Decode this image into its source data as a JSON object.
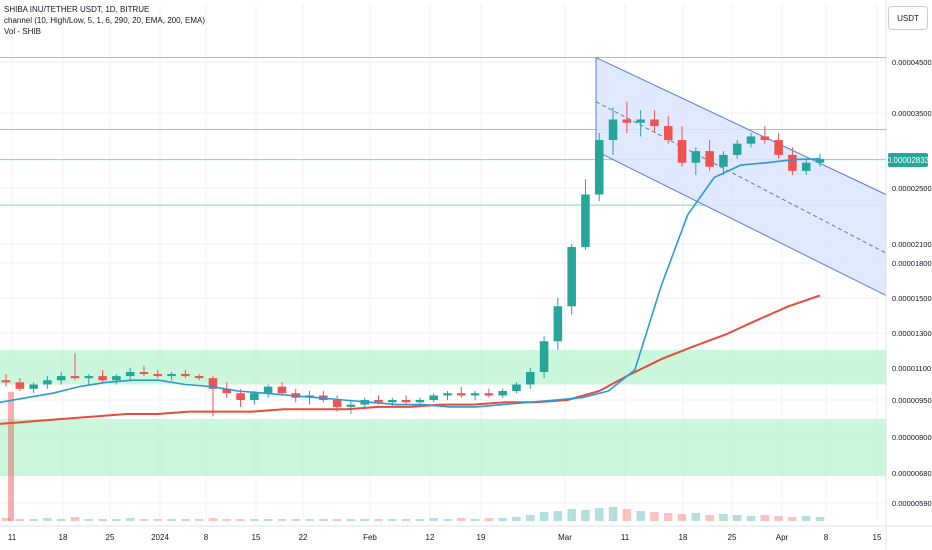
{
  "legend": {
    "title": "SHIBA INU/TETHER USDT, 1D, BITRUE",
    "indicator": "channel (10, High/Low, 5, 1, 6, 290, 20, EMA, 200, EMA)",
    "volume": "Vol - SHIB"
  },
  "currency_button": "USDT",
  "colors": {
    "up": "#26a69a",
    "down": "#ef5350",
    "channel_fill": "#dbe5fd",
    "channel_line": "#5b7bd5",
    "ema20": "#2a9bd8",
    "ema200": "#e74c3c",
    "zone": "#b9f4d0",
    "resistance": "#f3a2a2",
    "support": "#7ed8b8",
    "last_price_bg": "#26a69a"
  },
  "chart_data": {
    "type": "candlestick",
    "x_ticks": [
      "11",
      "18",
      "25",
      "2024",
      "8",
      "15",
      "22",
      "Feb",
      "12",
      "19",
      "Mar",
      "11",
      "18",
      "25",
      "Apr",
      "8",
      "15"
    ],
    "y_ticks": [
      "0.00004500",
      "0.00003500",
      "0.00002500",
      "0.00002100",
      "0.00001800",
      "0.00001500",
      "0.00001300",
      "0.00001100",
      "0.00000950",
      "0.00000800",
      "0.00000680",
      "0.00000590"
    ],
    "y_scale": "log",
    "last_price": "0.00002833",
    "horizontal_levels": [
      {
        "price": 4.6e-05,
        "kind": "resistance"
      },
      {
        "price": 3.25e-05,
        "kind": "resistance"
      },
      {
        "price": 2.84e-05,
        "kind": "support"
      },
      {
        "price": 2.37e-05,
        "kind": "support"
      }
    ],
    "zones": [
      {
        "top": 1.2e-05,
        "bottom": 1.02e-05
      },
      {
        "top": 8.7e-06,
        "bottom": 6.7e-06
      }
    ],
    "channel": {
      "upper": [
        [
          "Mar 6",
          4.6e-05
        ],
        [
          "Apr 15",
          2.45e-05
        ]
      ],
      "middle": [
        [
          "Mar 6",
          3.7e-05
        ],
        [
          "Apr 15",
          1.95e-05
        ]
      ],
      "lower": [
        [
          "Mar 6",
          2.95e-05
        ],
        [
          "Apr 15",
          1.52e-05
        ]
      ]
    },
    "ema20": [
      9.4e-06,
      9.6e-06,
      9.8e-06,
      1.01e-05,
      1.03e-05,
      1.04e-05,
      1.04e-05,
      1.02e-05,
      1.01e-05,
      9.9e-06,
      9.8e-06,
      9.7e-06,
      9.6e-06,
      9.5e-06,
      9.4e-06,
      9.3e-06,
      9.3e-06,
      9.2e-06,
      9.2e-06,
      9.3e-06,
      9.4e-06,
      9.5e-06,
      9.6e-06,
      9.9e-06,
      1.09e-05,
      1.6e-05,
      2.3e-05,
      2.62e-05,
      2.77e-05,
      2.8e-05,
      2.84e-05,
      2.85e-05
    ],
    "ema200": [
      8.5e-06,
      8.6e-06,
      8.7e-06,
      8.8e-06,
      8.9e-06,
      8.9e-06,
      9e-06,
      9e-06,
      9e-06,
      9.1e-06,
      9.1e-06,
      9.1e-06,
      9.2e-06,
      9.2e-06,
      9.3e-06,
      9.3e-06,
      9.4e-06,
      9.4e-06,
      9.5e-06,
      9.9e-06,
      1.07e-05,
      1.15e-05,
      1.22e-05,
      1.29e-05,
      1.37e-05,
      1.45e-05,
      1.52e-05
    ],
    "candles": [
      [
        1.04e-05,
        1.07e-05,
        1.01e-05,
        1.03e-05
      ],
      [
        1.03e-05,
        1.05e-05,
        9.9e-06,
        1e-05
      ],
      [
        1e-05,
        1.03e-05,
        9.8e-06,
        1.02e-05
      ],
      [
        1.02e-05,
        1.06e-05,
        1e-05,
        1.04e-05
      ],
      [
        1.04e-05,
        1.08e-05,
        1.02e-05,
        1.06e-05
      ],
      [
        1.06e-05,
        1.18e-05,
        1.04e-05,
        1.05e-05
      ],
      [
        1.05e-05,
        1.07e-05,
        1.02e-05,
        1.06e-05
      ],
      [
        1.06e-05,
        1.09e-05,
        1.03e-05,
        1.04e-05
      ],
      [
        1.04e-05,
        1.07e-05,
        1.02e-05,
        1.06e-05
      ],
      [
        1.06e-05,
        1.1e-05,
        1.04e-05,
        1.08e-05
      ],
      [
        1.08e-05,
        1.11e-05,
        1.06e-05,
        1.07e-05
      ],
      [
        1.07e-05,
        1.09e-05,
        1.05e-05,
        1.06e-05
      ],
      [
        1.06e-05,
        1.08e-05,
        1.04e-05,
        1.07e-05
      ],
      [
        1.07e-05,
        1.09e-05,
        1.05e-05,
        1.06e-05
      ],
      [
        1.06e-05,
        1.07e-05,
        1.04e-05,
        1.05e-05
      ],
      [
        1.05e-05,
        1.06e-05,
        8.8e-06,
        1e-05
      ],
      [
        1e-05,
        1.03e-05,
        9.6e-06,
        9.8e-06
      ],
      [
        9.8e-06,
        1e-05,
        9.2e-06,
        9.5e-06
      ],
      [
        9.5e-06,
        9.9e-06,
        9.3e-06,
        9.8e-06
      ],
      [
        9.8e-06,
        1.02e-05,
        9.6e-06,
        1.01e-05
      ],
      [
        1.01e-05,
        1.03e-05,
        9.7e-06,
        9.8e-06
      ],
      [
        9.8e-06,
        1e-05,
        9.4e-06,
        9.6e-06
      ],
      [
        9.6e-06,
        9.9e-06,
        9.3e-06,
        9.7e-06
      ],
      [
        9.7e-06,
        9.9e-06,
        9.4e-06,
        9.5e-06
      ],
      [
        9.5e-06,
        9.7e-06,
        9e-06,
        9.2e-06
      ],
      [
        9.2e-06,
        9.5e-06,
        8.9e-06,
        9.3e-06
      ],
      [
        9.3e-06,
        9.6e-06,
        9.1e-06,
        9.5e-06
      ],
      [
        9.5e-06,
        9.7e-06,
        9.3e-06,
        9.4e-06
      ],
      [
        9.4e-06,
        9.6e-06,
        9.2e-06,
        9.5e-06
      ],
      [
        9.5e-06,
        9.7e-06,
        9.3e-06,
        9.4e-06
      ],
      [
        9.4e-06,
        9.6e-06,
        9.2e-06,
        9.5e-06
      ],
      [
        9.5e-06,
        9.8e-06,
        9.4e-06,
        9.7e-06
      ],
      [
        9.7e-06,
        9.9e-06,
        9.5e-06,
        9.8e-06
      ],
      [
        9.8e-06,
        1.01e-05,
        9.6e-06,
        9.7e-06
      ],
      [
        9.7e-06,
        9.9e-06,
        9.5e-06,
        9.8e-06
      ],
      [
        9.8e-06,
        1e-05,
        9.6e-06,
        9.7e-06
      ],
      [
        9.7e-06,
        1e-05,
        9.6e-06,
        9.9e-06
      ],
      [
        9.9e-06,
        1.03e-05,
        9.8e-06,
        1.02e-05
      ],
      [
        1.02e-05,
        1.1e-05,
        1e-05,
        1.08e-05
      ],
      [
        1.08e-05,
        1.28e-05,
        1.05e-05,
        1.25e-05
      ],
      [
        1.25e-05,
        1.5e-05,
        1.2e-05,
        1.45e-05
      ],
      [
        1.45e-05,
        2.1e-05,
        1.4e-05,
        2.05e-05
      ],
      [
        2.05e-05,
        2.6e-05,
        2e-05,
        2.45e-05
      ],
      [
        2.45e-05,
        3.2e-05,
        2.4e-05,
        3.1e-05
      ],
      [
        3.1e-05,
        3.6e-05,
        2.9e-05,
        3.4e-05
      ],
      [
        3.4e-05,
        3.7e-05,
        3.2e-05,
        3.35e-05
      ],
      [
        3.35e-05,
        3.55e-05,
        3.15e-05,
        3.4e-05
      ],
      [
        3.4e-05,
        3.55e-05,
        3.2e-05,
        3.3e-05
      ],
      [
        3.3e-05,
        3.45e-05,
        3.05e-05,
        3.1e-05
      ],
      [
        3.1e-05,
        3.3e-05,
        2.75e-05,
        2.8e-05
      ],
      [
        2.8e-05,
        3e-05,
        2.65e-05,
        2.95e-05
      ],
      [
        2.95e-05,
        3.1e-05,
        2.7e-05,
        2.75e-05
      ],
      [
        2.75e-05,
        2.95e-05,
        2.65e-05,
        2.9e-05
      ],
      [
        2.9e-05,
        3.1e-05,
        2.85e-05,
        3.05e-05
      ],
      [
        3.05e-05,
        3.2e-05,
        3e-05,
        3.15e-05
      ],
      [
        3.15e-05,
        3.3e-05,
        3.05e-05,
        3.1e-05
      ],
      [
        3.1e-05,
        3.2e-05,
        2.85e-05,
        2.9e-05
      ],
      [
        2.9e-05,
        3e-05,
        2.65e-05,
        2.7e-05
      ],
      [
        2.7e-05,
        2.85e-05,
        2.65e-05,
        2.8e-05
      ],
      [
        2.8e-05,
        2.92e-05,
        2.75e-05,
        2.85e-05
      ]
    ],
    "volume": [
      3,
      2,
      2,
      3,
      2,
      4,
      2,
      2,
      2,
      3,
      2,
      2,
      2,
      2,
      2,
      3,
      2,
      2,
      2,
      2,
      2,
      2,
      2,
      2,
      2,
      2,
      2,
      2,
      2,
      2,
      2,
      3,
      2,
      3,
      2,
      3,
      3,
      4,
      6,
      9,
      10,
      12,
      11,
      13,
      14,
      12,
      10,
      9,
      8,
      7,
      8,
      6,
      7,
      6,
      5,
      6,
      5,
      4,
      5,
      4
    ]
  }
}
